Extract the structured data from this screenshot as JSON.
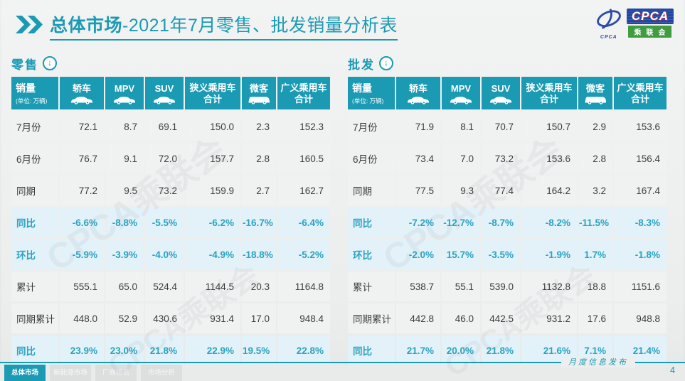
{
  "colors": {
    "accent_teal": "#1b9ab3",
    "percent_text": "#2aa3c2",
    "row_blue": "#e3f1f8",
    "row_grey": "#f0f1f1"
  },
  "title": {
    "bold": "总体市场",
    "rest": "-2021年7月零售、批发销量分析表"
  },
  "logo": {
    "cpca": "CPCA",
    "chinese": "乘联会",
    "sub": "CPCA"
  },
  "icons": {
    "down_arrow": "↓"
  },
  "watermark": "CPCA乘联会",
  "table_columns": [
    {
      "key": "sales",
      "label": "销量",
      "sub": "(单位: 万辆)"
    },
    {
      "key": "sedan",
      "label": "轿车",
      "icon": "car"
    },
    {
      "key": "mpv",
      "label": "MPV",
      "icon": "car"
    },
    {
      "key": "suv",
      "label": "SUV",
      "icon": "car"
    },
    {
      "key": "narrow-pv-total",
      "label": "狭义乘用车",
      "label2": "合计"
    },
    {
      "key": "microvan",
      "label": "微客",
      "icon": "van"
    },
    {
      "key": "broad-pv-total",
      "label": "广义乘用车",
      "label2": "合计"
    }
  ],
  "tables": [
    {
      "id": "retail",
      "section_label": "零售",
      "rows": [
        {
          "label": "7月份",
          "type": "data",
          "values": [
            "72.1",
            "8.7",
            "69.1",
            "150.0",
            "2.3",
            "152.3"
          ]
        },
        {
          "label": "6月份",
          "type": "data",
          "values": [
            "76.7",
            "9.1",
            "72.0",
            "157.7",
            "2.8",
            "160.5"
          ]
        },
        {
          "label": "同期",
          "type": "data",
          "values": [
            "77.2",
            "9.5",
            "73.2",
            "159.9",
            "2.7",
            "162.7"
          ]
        },
        {
          "label": "同比",
          "type": "pct",
          "values": [
            "-6.6%",
            "-8.8%",
            "-5.5%",
            "-6.2%",
            "-16.7%",
            "-6.4%"
          ]
        },
        {
          "label": "环比",
          "type": "pct",
          "values": [
            "-5.9%",
            "-3.9%",
            "-4.0%",
            "-4.9%",
            "-18.8%",
            "-5.2%"
          ]
        },
        {
          "label": "累计",
          "type": "data",
          "values": [
            "555.1",
            "65.0",
            "524.4",
            "1144.5",
            "20.3",
            "1164.8"
          ]
        },
        {
          "label": "同期累计",
          "type": "data",
          "values": [
            "448.0",
            "52.9",
            "430.6",
            "931.4",
            "17.0",
            "948.4"
          ]
        },
        {
          "label": "同比",
          "type": "pct",
          "values": [
            "23.9%",
            "23.0%",
            "21.8%",
            "22.9%",
            "19.5%",
            "22.8%"
          ]
        }
      ]
    },
    {
      "id": "wholesale",
      "section_label": "批发",
      "rows": [
        {
          "label": "7月份",
          "type": "data",
          "values": [
            "71.9",
            "8.1",
            "70.7",
            "150.7",
            "2.9",
            "153.6"
          ]
        },
        {
          "label": "6月份",
          "type": "data",
          "values": [
            "73.4",
            "7.0",
            "73.2",
            "153.6",
            "2.8",
            "156.4"
          ]
        },
        {
          "label": "同期",
          "type": "data",
          "values": [
            "77.5",
            "9.3",
            "77.4",
            "164.2",
            "3.2",
            "167.4"
          ]
        },
        {
          "label": "同比",
          "type": "pct",
          "values": [
            "-7.2%",
            "-12.7%",
            "-8.7%",
            "-8.2%",
            "-11.5%",
            "-8.3%"
          ]
        },
        {
          "label": "环比",
          "type": "pct",
          "values": [
            "-2.0%",
            "15.7%",
            "-3.5%",
            "-1.9%",
            "1.7%",
            "-1.8%"
          ]
        },
        {
          "label": "累计",
          "type": "data",
          "values": [
            "538.7",
            "55.1",
            "539.0",
            "1132.8",
            "18.8",
            "1151.6"
          ]
        },
        {
          "label": "同期累计",
          "type": "data",
          "values": [
            "442.8",
            "46.0",
            "442.5",
            "931.2",
            "17.6",
            "948.8"
          ]
        },
        {
          "label": "同比",
          "type": "pct",
          "values": [
            "21.7%",
            "20.0%",
            "21.8%",
            "21.6%",
            "7.1%",
            "21.4%"
          ]
        }
      ]
    }
  ],
  "footer": {
    "tabs": [
      {
        "key": "overall-market",
        "label": "总体市场",
        "active": true
      },
      {
        "key": "nev-market",
        "label": "新能源市场",
        "active": false
      },
      {
        "key": "oem-ranking",
        "label": "厂商排名",
        "active": false
      },
      {
        "key": "market-analysis",
        "label": "市场分析",
        "active": false
      }
    ],
    "publish_label": "月度信息发布",
    "page_number": "4"
  }
}
